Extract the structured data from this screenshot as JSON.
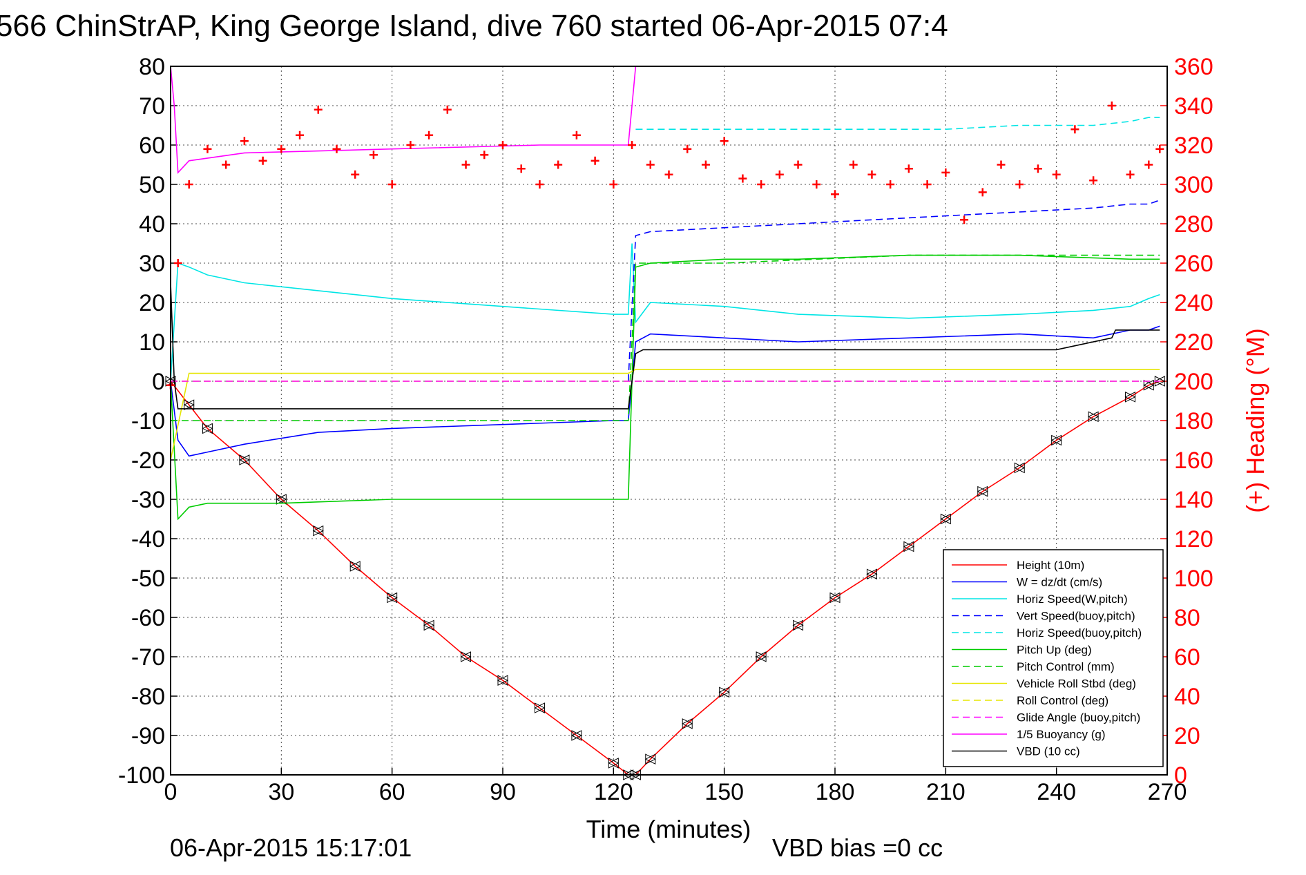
{
  "chart_data": {
    "type": "line",
    "title": "566 ChinStrAP, King George Island, dive 760 started 06-Apr-2015 07:4",
    "xlabel": "Time (minutes)",
    "ylabel_right": "(+) Heading (°M)",
    "xlim": [
      0,
      270
    ],
    "ylim": [
      -100,
      80
    ],
    "ylim_right": [
      0,
      360
    ],
    "x_ticks": [
      "0",
      "30",
      "60",
      "90",
      "120",
      "150",
      "180",
      "210",
      "240",
      "270"
    ],
    "y_ticks": [
      "80",
      "70",
      "60",
      "50",
      "40",
      "30",
      "20",
      "10",
      "0",
      "-10",
      "-20",
      "-30",
      "-40",
      "-50",
      "-60",
      "-70",
      "-80",
      "-90",
      "-100"
    ],
    "y_ticks_right": [
      "360",
      "340",
      "320",
      "300",
      "280",
      "260",
      "240",
      "220",
      "200",
      "180",
      "160",
      "140",
      "120",
      "100",
      "80",
      "60",
      "40",
      "20",
      "0"
    ],
    "grid": true,
    "legend_position": "bottom-right",
    "timestamp": "06-Apr-2015 15:17:01",
    "vbd_bias": "VBD bias =0 cc",
    "colors": {
      "height": "#ff0000",
      "w": "#0000ff",
      "horiz_speed": "#00e5e5",
      "vert_speed": "#0000ff",
      "horiz_speed_buoy": "#00e5e5",
      "pitch_up": "#00cc00",
      "pitch_control": "#00cc00",
      "vehicle_roll": "#e5e500",
      "roll_control": "#e5e500",
      "glide_angle": "#ff00ff",
      "buoyancy": "#ff00ff",
      "vbd": "#000000",
      "heading": "#ff0000"
    },
    "series": [
      {
        "key": "height",
        "name": "Height (10m)",
        "style": "solid",
        "x": [
          0,
          5,
          10,
          20,
          30,
          40,
          50,
          60,
          70,
          80,
          90,
          100,
          110,
          120,
          124,
          126,
          130,
          140,
          150,
          160,
          170,
          180,
          190,
          200,
          210,
          220,
          230,
          240,
          250,
          260,
          265,
          268
        ],
        "y": [
          0,
          -6,
          -12,
          -20,
          -30,
          -38,
          -47,
          -55,
          -62,
          -70,
          -76,
          -83,
          -90,
          -97,
          -100,
          -100,
          -96,
          -87,
          -79,
          -70,
          -62,
          -55,
          -49,
          -42,
          -35,
          -28,
          -22,
          -15,
          -9,
          -4,
          -1,
          0
        ]
      },
      {
        "key": "w",
        "name": "W = dz/dt (cm/s)",
        "style": "solid",
        "x": [
          0,
          2,
          5,
          10,
          20,
          40,
          60,
          90,
          120,
          124,
          125,
          126,
          130,
          150,
          170,
          200,
          230,
          250,
          260,
          265,
          268
        ],
        "y": [
          0,
          -15,
          -19,
          -18,
          -16,
          -13,
          -12,
          -11,
          -10,
          -10,
          0,
          10,
          12,
          11,
          10,
          11,
          12,
          11,
          13,
          13,
          14
        ]
      },
      {
        "key": "horiz_speed",
        "name": "Horiz Speed(W,pitch)",
        "style": "solid",
        "x": [
          0,
          2,
          5,
          10,
          20,
          40,
          60,
          90,
          120,
          124,
          125,
          126,
          130,
          150,
          170,
          200,
          230,
          250,
          260,
          265,
          268
        ],
        "y": [
          0,
          30,
          29,
          27,
          25,
          23,
          21,
          19,
          17,
          17,
          35,
          15,
          20,
          19,
          17,
          16,
          17,
          18,
          19,
          21,
          22
        ]
      },
      {
        "key": "vert_speed",
        "name": "Vert Speed(buoy,pitch)",
        "style": "dash",
        "x": [
          124,
          126,
          130,
          150,
          170,
          190,
          210,
          230,
          250,
          260,
          265,
          268
        ],
        "y": [
          0,
          37,
          38,
          39,
          40,
          41,
          42,
          43,
          44,
          45,
          45,
          46
        ]
      },
      {
        "key": "horiz_speed_buoy",
        "name": "Horiz Speed(buoy,pitch)",
        "style": "dash",
        "x": [
          126,
          130,
          150,
          170,
          190,
          210,
          230,
          250,
          260,
          265,
          268
        ],
        "y": [
          64,
          64,
          64,
          64,
          64,
          64,
          65,
          65,
          66,
          67,
          67
        ]
      },
      {
        "key": "pitch_up",
        "name": "Pitch Up (deg)",
        "style": "solid",
        "x": [
          0,
          2,
          5,
          10,
          30,
          60,
          90,
          120,
          124,
          125,
          126,
          130,
          150,
          170,
          200,
          230,
          260,
          268
        ],
        "y": [
          0,
          -35,
          -32,
          -31,
          -31,
          -30,
          -30,
          -30,
          -30,
          0,
          29,
          30,
          31,
          31,
          32,
          32,
          31,
          31
        ]
      },
      {
        "key": "pitch_control",
        "name": "Pitch Control (mm)",
        "style": "dash",
        "x": [
          0,
          5,
          30,
          60,
          90,
          120,
          124,
          126,
          150,
          200,
          260,
          268
        ],
        "y": [
          -10,
          -10,
          -10,
          -10,
          -10,
          -10,
          -10,
          30,
          30,
          32,
          32,
          32
        ]
      },
      {
        "key": "vehicle_roll",
        "name": "Vehicle Roll Stbd (deg)",
        "style": "solid",
        "x": [
          0,
          5,
          30,
          60,
          90,
          120,
          124,
          126,
          150,
          200,
          260,
          268
        ],
        "y": [
          -20,
          2,
          2,
          2,
          2,
          2,
          2,
          3,
          3,
          3,
          3,
          3
        ]
      },
      {
        "key": "roll_control",
        "name": "Roll Control (deg)",
        "style": "dash",
        "x": [
          0,
          5,
          30,
          60,
          90,
          120,
          124,
          126,
          150,
          200,
          260,
          268
        ],
        "y": [
          0,
          0,
          0,
          0,
          0,
          0,
          0,
          0,
          0,
          0,
          0,
          0
        ]
      },
      {
        "key": "glide_angle",
        "name": "Glide Angle (buoy,pitch)",
        "style": "dash",
        "x": [
          0,
          268
        ],
        "y": [
          0,
          0
        ]
      },
      {
        "key": "buoyancy",
        "name": "1/5 Buoyancy (g)",
        "style": "solid",
        "x": [
          0,
          1,
          2,
          5,
          20,
          60,
          100,
          124,
          125,
          126
        ],
        "y": [
          80,
          70,
          53,
          56,
          58,
          59,
          60,
          60,
          70,
          80
        ]
      },
      {
        "key": "vbd",
        "name": "VBD (10 cc)",
        "style": "solid",
        "x": [
          0,
          1,
          2,
          124,
          125,
          126,
          128,
          240,
          245,
          255,
          256,
          268
        ],
        "y": [
          25,
          0,
          -7,
          -7,
          0,
          7,
          8,
          8,
          9,
          11,
          13,
          13
        ]
      },
      {
        "key": "heading",
        "name": "",
        "style": "markers",
        "axis": "right",
        "x": [
          0,
          2,
          5,
          10,
          15,
          20,
          25,
          30,
          35,
          40,
          45,
          50,
          55,
          60,
          65,
          70,
          75,
          80,
          85,
          90,
          95,
          100,
          105,
          110,
          115,
          120,
          125,
          130,
          135,
          140,
          145,
          150,
          155,
          160,
          165,
          170,
          175,
          180,
          185,
          190,
          195,
          200,
          205,
          210,
          215,
          220,
          225,
          230,
          235,
          240,
          245,
          250,
          255,
          260,
          265,
          268
        ],
        "y": [
          198,
          260,
          300,
          318,
          310,
          322,
          312,
          318,
          325,
          338,
          318,
          305,
          315,
          300,
          320,
          325,
          338,
          310,
          315,
          320,
          308,
          300,
          310,
          325,
          312,
          300,
          320,
          310,
          305,
          318,
          310,
          322,
          303,
          300,
          305,
          310,
          300,
          295,
          310,
          305,
          300,
          308,
          300,
          306,
          282,
          296,
          310,
          300,
          308,
          305,
          328,
          302,
          340,
          305,
          310,
          318
        ]
      }
    ]
  }
}
